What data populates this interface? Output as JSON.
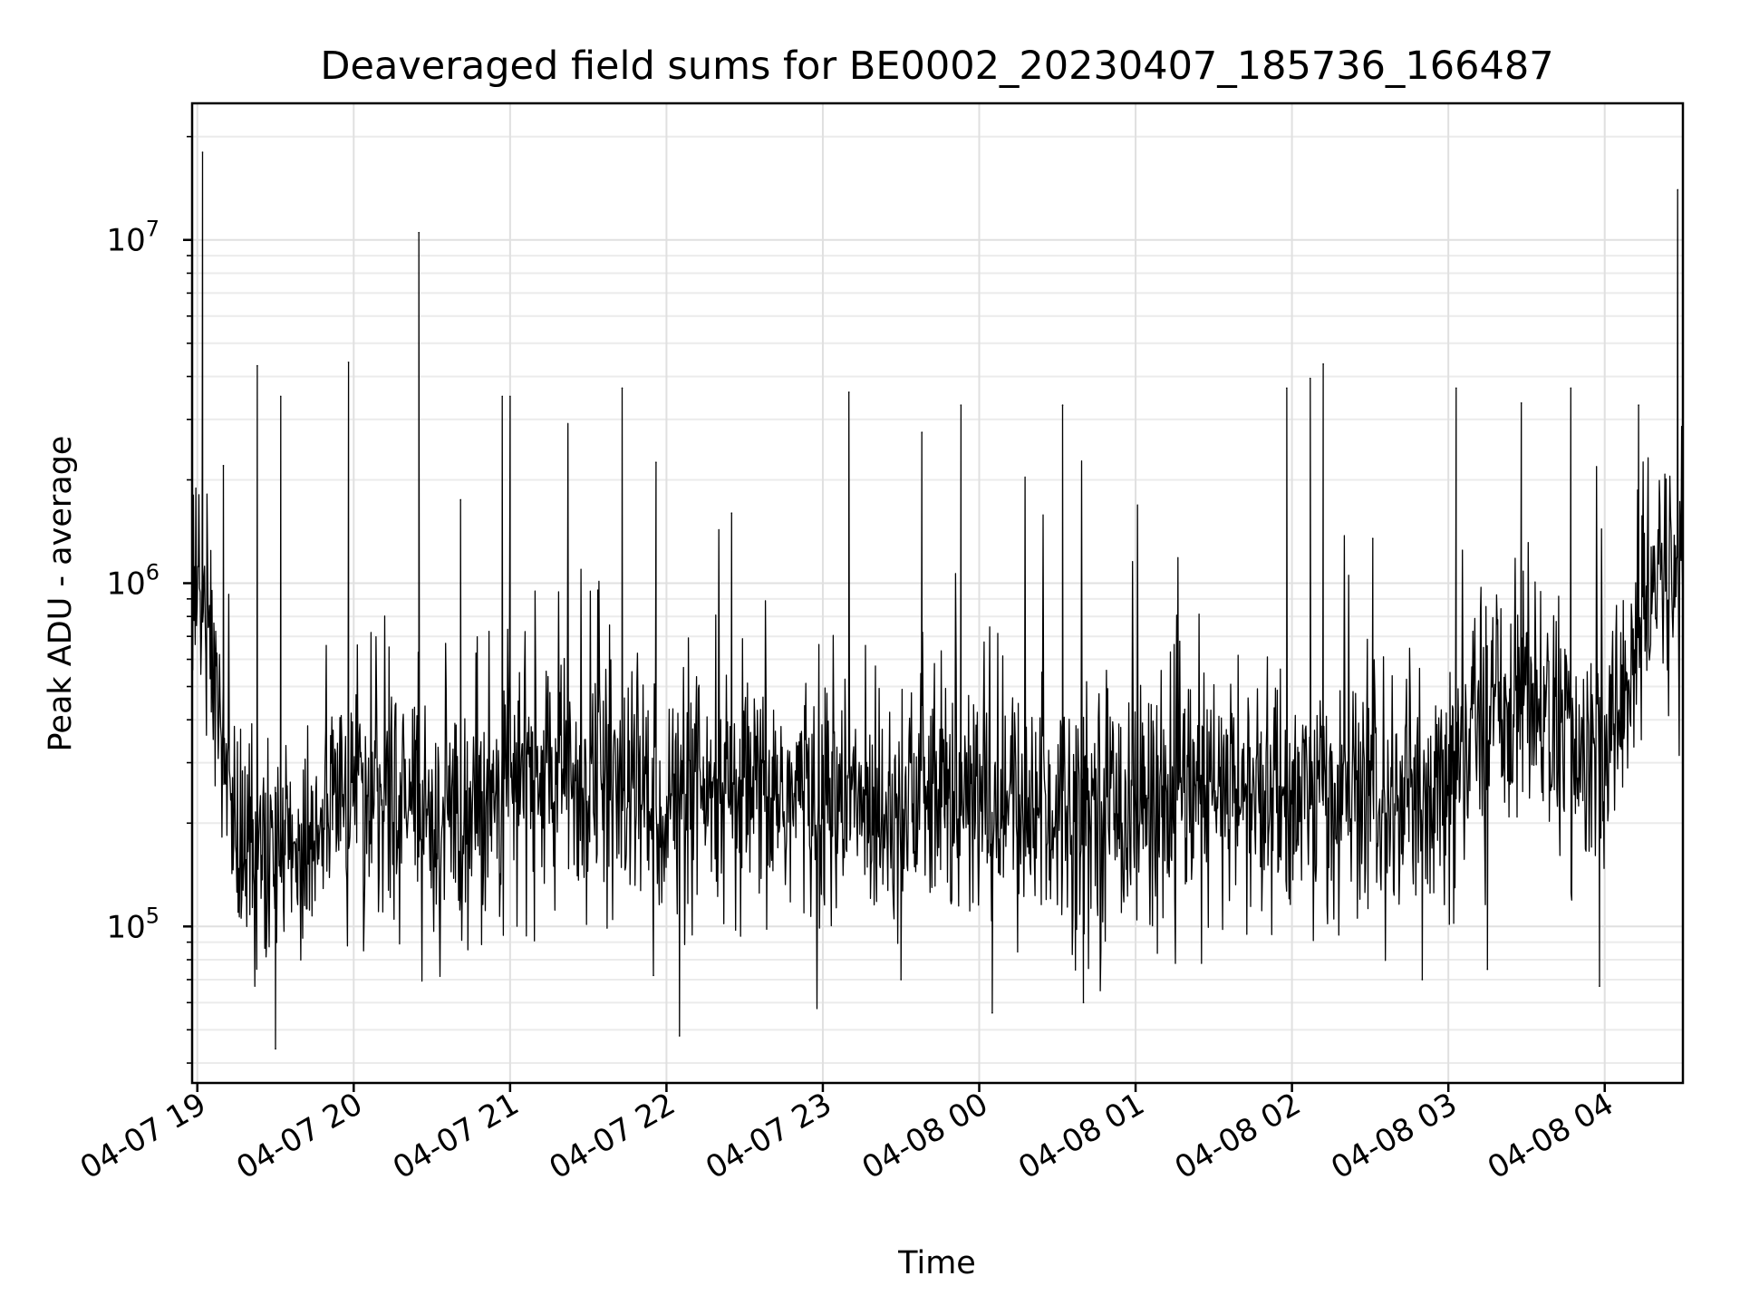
{
  "chart_data": {
    "type": "line",
    "title": "Deaveraged field sums for BE0002_20230407_185736_166487",
    "xlabel": "Time",
    "ylabel": "Peak ADU - average",
    "yscale": "log",
    "ylim": [
      35000,
      25000000
    ],
    "xlim": [
      "2023-04-07 18:58",
      "2023-04-08 04:30"
    ],
    "x_tick_labels": [
      "04-07 19",
      "04-07 20",
      "04-07 21",
      "04-07 22",
      "04-07 23",
      "04-08 00",
      "04-08 01",
      "04-08 02",
      "04-08 03",
      "04-08 04"
    ],
    "y_tick_labels": [
      {
        "base": "10",
        "exp": "5"
      },
      {
        "base": "10",
        "exp": "6"
      },
      {
        "base": "10",
        "exp": "7"
      }
    ],
    "grid": true,
    "legend": "none",
    "line_color": "#000000",
    "series": [
      {
        "x": [
          "2023-04-07 18:58",
          "2023-04-07 19:01",
          "2023-04-07 19:04",
          "2023-04-07 19:08",
          "2023-04-07 19:12",
          "2023-04-07 19:17",
          "2023-04-07 19:24",
          "2023-04-07 19:30",
          "2023-04-07 19:40",
          "2023-04-07 19:50",
          "2023-04-07 20:00",
          "2023-04-07 20:10",
          "2023-04-07 20:20",
          "2023-04-07 20:30",
          "2023-04-07 20:40",
          "2023-04-07 20:50",
          "2023-04-07 21:00",
          "2023-04-07 21:10",
          "2023-04-07 21:20",
          "2023-04-07 21:30",
          "2023-04-07 21:40",
          "2023-04-07 21:50",
          "2023-04-07 22:00",
          "2023-04-07 22:10",
          "2023-04-07 22:20",
          "2023-04-07 22:30",
          "2023-04-07 22:40",
          "2023-04-07 22:50",
          "2023-04-07 23:00",
          "2023-04-07 23:10",
          "2023-04-07 23:20",
          "2023-04-07 23:30",
          "2023-04-07 23:40",
          "2023-04-07 23:50",
          "2023-04-08 00:00",
          "2023-04-08 00:10",
          "2023-04-08 00:20",
          "2023-04-08 00:30",
          "2023-04-08 00:40",
          "2023-04-08 00:50",
          "2023-04-08 01:00",
          "2023-04-08 01:10",
          "2023-04-08 01:20",
          "2023-04-08 01:30",
          "2023-04-08 01:40",
          "2023-04-08 01:50",
          "2023-04-08 02:00",
          "2023-04-08 02:10",
          "2023-04-08 02:20",
          "2023-04-08 02:30",
          "2023-04-08 02:40",
          "2023-04-08 02:50",
          "2023-04-08 03:00",
          "2023-04-08 03:05",
          "2023-04-08 03:10",
          "2023-04-08 03:20",
          "2023-04-08 03:30",
          "2023-04-08 03:40",
          "2023-04-08 03:50",
          "2023-04-08 04:00",
          "2023-04-08 04:10",
          "2023-04-08 04:20",
          "2023-04-08 04:30"
        ],
        "values": [
          900000,
          1000000,
          700000,
          500000,
          250000,
          180000,
          160000,
          150000,
          170000,
          220000,
          260000,
          250000,
          230000,
          210000,
          220000,
          240000,
          270000,
          280000,
          270000,
          260000,
          250000,
          240000,
          230000,
          220000,
          220000,
          230000,
          240000,
          240000,
          230000,
          230000,
          230000,
          240000,
          240000,
          230000,
          230000,
          225000,
          220000,
          220000,
          230000,
          230000,
          230000,
          235000,
          240000,
          240000,
          235000,
          235000,
          240000,
          240000,
          235000,
          230000,
          220000,
          210000,
          230000,
          300000,
          400000,
          450000,
          500000,
          400000,
          300000,
          280000,
          600000,
          1000000,
          1200000
        ],
        "peaks": [
          [
            "2023-04-07 19:02",
            18000000
          ],
          [
            "2023-04-07 19:10",
            2200000
          ],
          [
            "2023-04-07 19:23",
            4300000
          ],
          [
            "2023-04-07 19:32",
            3500000
          ],
          [
            "2023-04-07 19:58",
            4400000
          ],
          [
            "2023-04-07 20:25",
            10500000
          ],
          [
            "2023-04-07 20:41",
            1750000
          ],
          [
            "2023-04-07 20:57",
            3500000
          ],
          [
            "2023-04-07 21:00",
            3500000
          ],
          [
            "2023-04-07 21:43",
            3700000
          ],
          [
            "2023-04-07 21:56",
            2250000
          ],
          [
            "2023-04-07 22:25",
            1600000
          ],
          [
            "2023-04-07 23:10",
            3600000
          ],
          [
            "2023-04-07 23:38",
            2750000
          ],
          [
            "2023-04-07 23:53",
            3300000
          ],
          [
            "2023-04-08 00:32",
            3300000
          ],
          [
            "2023-04-08 01:58",
            3700000
          ],
          [
            "2023-04-08 02:07",
            3950000
          ],
          [
            "2023-04-08 02:12",
            4350000
          ],
          [
            "2023-04-08 02:31",
            1350000
          ],
          [
            "2023-04-08 03:03",
            3700000
          ],
          [
            "2023-04-08 03:28",
            3350000
          ],
          [
            "2023-04-08 03:47",
            3700000
          ],
          [
            "2023-04-08 04:13",
            3300000
          ],
          [
            "2023-04-08 04:28",
            14000000
          ]
        ],
        "dips": [
          [
            "2023-04-07 19:30",
            44000
          ],
          [
            "2023-04-07 21:55",
            72000
          ],
          [
            "2023-04-07 22:05",
            48000
          ],
          [
            "2023-04-07 23:30",
            70000
          ],
          [
            "2023-04-08 00:05",
            56000
          ],
          [
            "2023-04-08 00:40",
            60000
          ],
          [
            "2023-04-08 02:50",
            70000
          ],
          [
            "2023-04-08 03:15",
            75000
          ],
          [
            "2023-04-08 03:58",
            67000
          ]
        ]
      }
    ]
  }
}
